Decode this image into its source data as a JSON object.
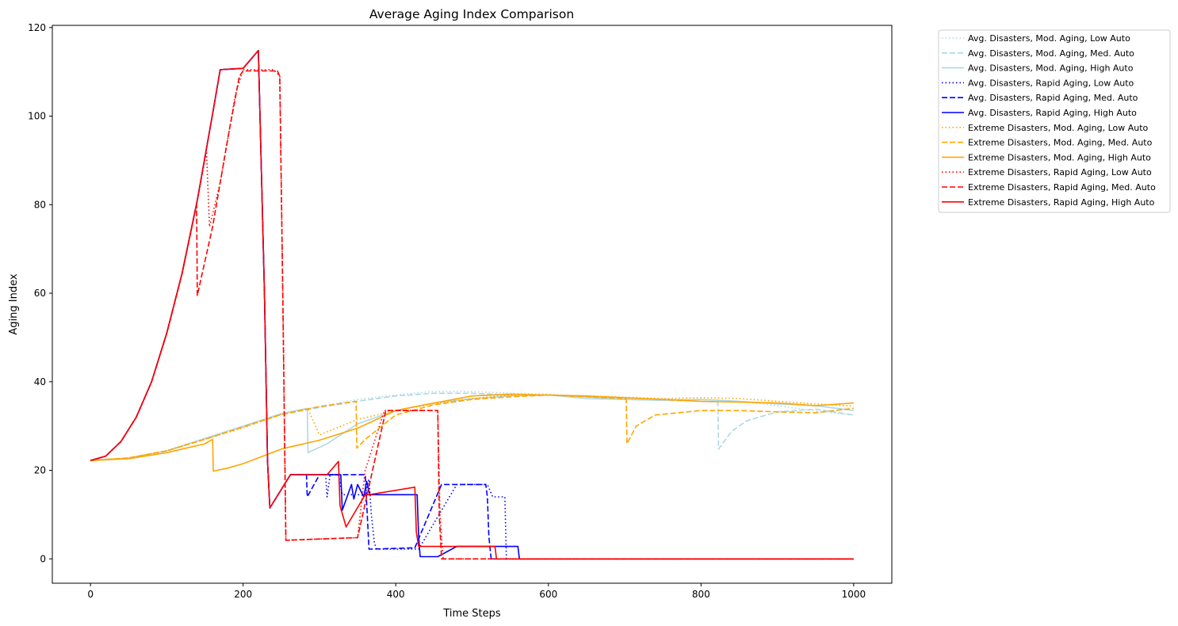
{
  "chart_data": {
    "type": "line",
    "title": "Average Aging Index Comparison",
    "xlabel": "Time Steps",
    "ylabel": "Aging Index",
    "xlim": [
      -50,
      1050
    ],
    "ylim": [
      -5.5,
      120.5
    ],
    "xticks": [
      0,
      200,
      400,
      600,
      800,
      1000
    ],
    "yticks": [
      0,
      20,
      40,
      60,
      80,
      100,
      120
    ],
    "grid": false,
    "legend_position": "outside-right-top",
    "series": [
      {
        "name": "Avg. Disasters, Mod. Aging, Low Auto",
        "color": "#add8e6",
        "dash": "dotted",
        "x": [
          0,
          50,
          100,
          150,
          200,
          250,
          300,
          350,
          400,
          450,
          500,
          550,
          600,
          650,
          700,
          750,
          800,
          850,
          900,
          950,
          1000
        ],
        "y": [
          22.2,
          22.8,
          24.5,
          27.2,
          30.0,
          32.8,
          34.4,
          36.0,
          37.0,
          37.8,
          37.8,
          37.4,
          37.2,
          36.6,
          36.2,
          36.0,
          36.0,
          35.6,
          34.6,
          33.4,
          32.5
        ]
      },
      {
        "name": "Avg. Disasters, Mod. Aging, Med. Auto",
        "color": "#add8e6",
        "dash": "dashed",
        "x": [
          0,
          50,
          100,
          150,
          200,
          250,
          300,
          350,
          400,
          450,
          500,
          550,
          600,
          650,
          700,
          750,
          800,
          822,
          823,
          840,
          860,
          900,
          950,
          1000
        ],
        "y": [
          22.2,
          22.8,
          24.4,
          27.0,
          29.8,
          32.6,
          34.2,
          35.6,
          36.8,
          37.4,
          37.4,
          37.0,
          37.0,
          36.6,
          36.0,
          35.8,
          35.6,
          35.4,
          24.8,
          28.8,
          31.2,
          33.2,
          33.8,
          32.5
        ]
      },
      {
        "name": "Avg. Disasters, Mod. Aging, High Auto",
        "color": "#add8e6",
        "dash": "solid",
        "x": [
          0,
          50,
          100,
          150,
          200,
          250,
          284,
          285,
          310,
          350,
          400,
          450,
          500,
          550,
          600,
          650,
          700,
          750,
          800,
          850,
          900,
          950,
          1000
        ],
        "y": [
          22.2,
          22.8,
          24.4,
          27.2,
          30.0,
          32.8,
          34.0,
          24.0,
          26.0,
          30.5,
          33.5,
          35.2,
          36.2,
          36.8,
          37.0,
          36.2,
          36.0,
          35.8,
          36.0,
          35.6,
          35.0,
          34.6,
          33.5
        ]
      },
      {
        "name": "Avg. Disasters, Rapid Aging, Low Auto",
        "color": "#0000ff",
        "dash": "dotted",
        "x": [
          0,
          20,
          40,
          60,
          80,
          100,
          120,
          140,
          160,
          170,
          200,
          220,
          228,
          232,
          235,
          262,
          308,
          310,
          314,
          325,
          330,
          360,
          365,
          368,
          372,
          375,
          430,
          480,
          520,
          527,
          530,
          543,
          545,
          560,
          1000
        ],
        "y": [
          22.2,
          23.2,
          26.5,
          32.0,
          40.0,
          51.0,
          64.5,
          81.0,
          100.5,
          110.5,
          110.8,
          114.8,
          60.0,
          22.0,
          11.5,
          19.0,
          19.0,
          14.0,
          19.0,
          19.0,
          14.5,
          14.5,
          18.0,
          10.0,
          3.5,
          2.2,
          2.2,
          16.8,
          16.8,
          14.0,
          14.0,
          14.0,
          0.0,
          0.0,
          0.0
        ]
      },
      {
        "name": "Avg. Disasters, Rapid Aging, Med. Auto",
        "color": "#0000ff",
        "dash": "dashed",
        "x": [
          0,
          20,
          40,
          60,
          80,
          100,
          120,
          140,
          160,
          170,
          200,
          220,
          228,
          232,
          235,
          262,
          283,
          284,
          300,
          360,
          365,
          367,
          425,
          460,
          518,
          520,
          522,
          525,
          1000
        ],
        "y": [
          22.2,
          23.2,
          26.5,
          32.0,
          40.0,
          51.0,
          64.5,
          81.0,
          100.5,
          110.5,
          110.8,
          114.8,
          60.0,
          22.0,
          11.5,
          19.0,
          19.0,
          14.0,
          19.0,
          19.0,
          2.2,
          2.2,
          2.5,
          16.8,
          16.8,
          14.0,
          5.0,
          0.0,
          0.0
        ]
      },
      {
        "name": "Avg. Disasters, Rapid Aging, High Auto",
        "color": "#0000ff",
        "dash": "solid",
        "x": [
          0,
          20,
          40,
          60,
          80,
          100,
          120,
          140,
          160,
          170,
          200,
          220,
          228,
          232,
          235,
          262,
          300,
          316,
          328,
          330,
          342,
          345,
          350,
          358,
          362,
          366,
          428,
          430,
          432,
          455,
          480,
          490,
          558,
          560,
          562,
          1000
        ],
        "y": [
          22.2,
          23.2,
          26.5,
          32.0,
          40.0,
          51.0,
          64.5,
          81.0,
          100.5,
          110.5,
          110.8,
          114.8,
          60.0,
          22.0,
          11.5,
          19.0,
          19.0,
          19.0,
          19.0,
          11.0,
          16.8,
          13.5,
          16.8,
          14.0,
          17.5,
          14.5,
          14.5,
          5.0,
          0.5,
          0.5,
          2.8,
          2.8,
          2.8,
          2.8,
          0.0,
          0.0
        ]
      },
      {
        "name": "Extreme Disasters, Mod. Aging, Low Auto",
        "color": "#ffa500",
        "dash": "dotted",
        "x": [
          0,
          50,
          100,
          150,
          200,
          250,
          285,
          300,
          350,
          400,
          450,
          500,
          550,
          600,
          650,
          700,
          750,
          800,
          850,
          900,
          950,
          1000
        ],
        "y": [
          22.2,
          22.8,
          24.4,
          27.0,
          29.6,
          32.6,
          33.8,
          28.0,
          31.5,
          33.5,
          35.0,
          36.2,
          37.0,
          37.0,
          36.8,
          36.5,
          36.2,
          36.4,
          36.2,
          35.6,
          35.0,
          34.5
        ]
      },
      {
        "name": "Extreme Disasters, Mod. Aging, Med. Auto",
        "color": "#ffa500",
        "dash": "dashed",
        "x": [
          0,
          50,
          100,
          150,
          200,
          250,
          300,
          348,
          349,
          360,
          400,
          450,
          500,
          550,
          600,
          650,
          700,
          702,
          703,
          715,
          740,
          800,
          850,
          900,
          950,
          1000
        ],
        "y": [
          22.2,
          22.8,
          24.4,
          27.0,
          29.8,
          32.6,
          34.4,
          35.6,
          25.0,
          27.0,
          32.5,
          34.8,
          36.0,
          36.6,
          37.0,
          36.6,
          36.2,
          36.0,
          26.0,
          30.0,
          32.5,
          33.5,
          33.5,
          33.2,
          33.0,
          34.0
        ]
      },
      {
        "name": "Extreme Disasters, Mod. Aging, High Auto",
        "color": "#ffa500",
        "dash": "solid",
        "x": [
          0,
          50,
          100,
          150,
          160,
          161,
          180,
          200,
          250,
          300,
          350,
          400,
          450,
          500,
          550,
          600,
          650,
          700,
          750,
          800,
          850,
          900,
          950,
          1000
        ],
        "y": [
          22.2,
          22.6,
          24.0,
          26.0,
          27.0,
          19.8,
          20.5,
          21.5,
          24.8,
          26.8,
          29.5,
          33.5,
          35.2,
          36.8,
          37.2,
          37.0,
          36.8,
          36.4,
          36.0,
          35.6,
          35.4,
          35.2,
          34.6,
          35.2
        ]
      },
      {
        "name": "Extreme Disasters, Rapid Aging, Low Auto",
        "color": "#ff0000",
        "dash": "dotted",
        "x": [
          0,
          20,
          40,
          60,
          80,
          100,
          120,
          140,
          152,
          156,
          170,
          190,
          200,
          220,
          240,
          248,
          252,
          256,
          350,
          360,
          385,
          455,
          458,
          462,
          1000
        ],
        "y": [
          22.2,
          23.2,
          26.5,
          32.0,
          40.0,
          51.0,
          64.5,
          81.0,
          92.0,
          75.0,
          85.0,
          105.0,
          110.5,
          110.5,
          110.5,
          109.0,
          60.0,
          4.2,
          4.8,
          20.0,
          33.5,
          33.5,
          10.0,
          0.0,
          0.0
        ]
      },
      {
        "name": "Extreme Disasters, Rapid Aging, Med. Auto",
        "color": "#ff0000",
        "dash": "dashed",
        "x": [
          0,
          20,
          40,
          60,
          80,
          100,
          120,
          139,
          140,
          160,
          180,
          195,
          200,
          220,
          245,
          248,
          252,
          256,
          350,
          387,
          455,
          457,
          460,
          1000
        ],
        "y": [
          22.2,
          23.2,
          26.5,
          32.0,
          40.0,
          51.0,
          64.5,
          80.0,
          59.5,
          75.0,
          95.0,
          109.0,
          110.2,
          110.2,
          110.2,
          109.0,
          60.0,
          4.2,
          4.8,
          33.5,
          33.5,
          10.0,
          0.0,
          0.0
        ]
      },
      {
        "name": "Extreme Disasters, Rapid Aging, High Auto",
        "color": "#ff0000",
        "dash": "solid",
        "x": [
          0,
          20,
          40,
          60,
          80,
          100,
          120,
          140,
          160,
          170,
          200,
          220,
          228,
          232,
          235,
          262,
          310,
          325,
          327,
          335,
          360,
          365,
          425,
          427,
          430,
          450,
          480,
          490,
          520,
          530,
          532,
          1000
        ],
        "y": [
          22.2,
          23.2,
          26.5,
          32.0,
          40.0,
          51.0,
          64.5,
          81.0,
          100.5,
          110.5,
          110.8,
          114.8,
          60.0,
          22.0,
          11.5,
          19.0,
          19.0,
          22.0,
          12.0,
          7.2,
          14.5,
          14.5,
          16.2,
          6.0,
          2.8,
          2.8,
          2.8,
          2.8,
          2.8,
          2.8,
          0.0,
          0.0
        ]
      }
    ]
  }
}
